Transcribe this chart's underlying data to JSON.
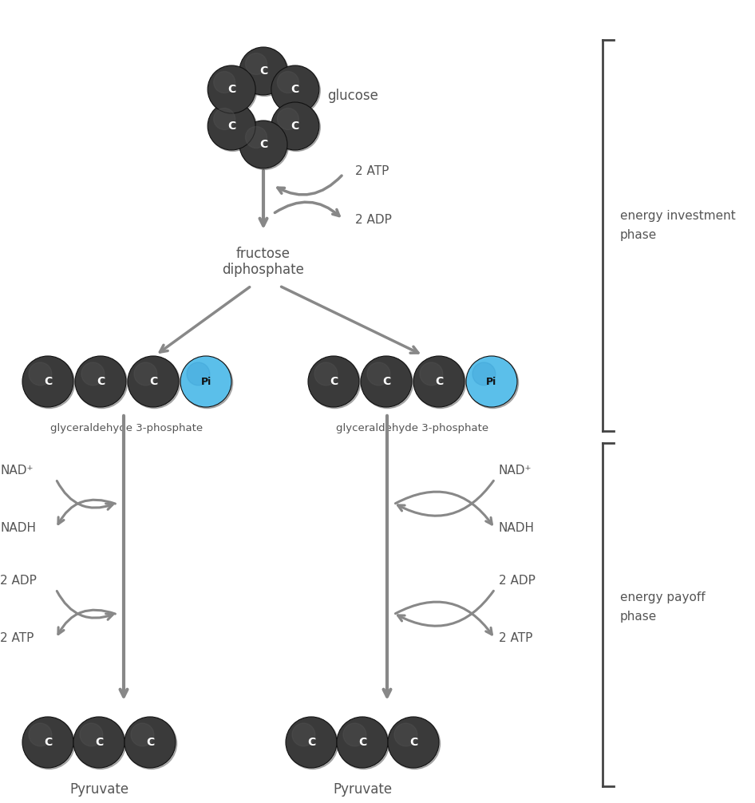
{
  "bg_color": "#ffffff",
  "dark_ball_color": "#3a3a3a",
  "dark_ball_color2": "#555555",
  "blue_ball_color": "#5bbfea",
  "blue_ball_color2": "#3a9fd4",
  "ball_edge_color": "#222222",
  "text_color": "#555555",
  "arrow_color": "#888888",
  "bracket_color": "#444444",
  "glucose_label": "glucose",
  "fructose_label_1": "fructose",
  "fructose_label_2": "diphosphate",
  "glyc_label": "glyceraldehyde 3-phosphate",
  "pyruvate_label": "Pyruvate",
  "investment_label_1": "energy investment",
  "investment_label_2": "phase",
  "payoff_label_1": "energy payoff",
  "payoff_label_2": "phase"
}
